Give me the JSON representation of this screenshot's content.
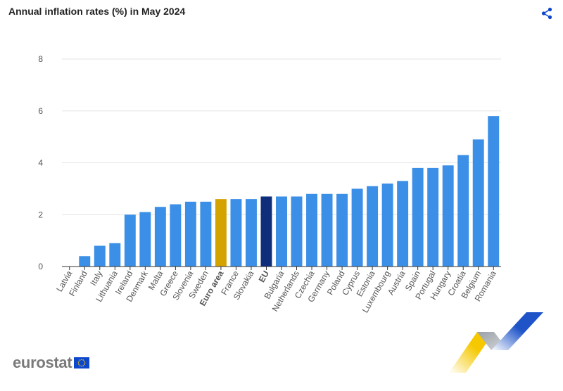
{
  "header": {
    "title": "Annual inflation rates (%) in May 2024"
  },
  "share": {
    "icon": "share-icon"
  },
  "brand": {
    "name": "eurostat"
  },
  "colors": {
    "country": "#3b8fe6",
    "euro_area": "#d4a300",
    "eu": "#0e2d7a",
    "grid": "#e3e3e3",
    "axis": "#333333",
    "text": "#555555",
    "brand": "#0e47cb",
    "flag": "#0e47cb",
    "flag_stars": "#ffdd00"
  },
  "chart_data": {
    "type": "bar",
    "title": "Annual inflation rates (%) in May 2024",
    "xlabel": "",
    "ylabel": "",
    "ylim": [
      0,
      8
    ],
    "yticks": [
      0,
      2,
      4,
      6,
      8
    ],
    "grid": true,
    "legend": "none",
    "categories": [
      "Latvia",
      "Finland",
      "Italy",
      "Lithuania",
      "Ireland",
      "Denmark",
      "Malta",
      "Greece",
      "Slovenia",
      "Sweden",
      "Euro area",
      "France",
      "Slovakia",
      "EU",
      "Bulgaria",
      "Netherlands",
      "Czechia",
      "Germany",
      "Poland",
      "Cyprus",
      "Estonia",
      "Luxembourg",
      "Austria",
      "Spain",
      "Portugal",
      "Hungary",
      "Croatia",
      "Belgium",
      "Romania"
    ],
    "values": [
      0.0,
      0.4,
      0.8,
      0.9,
      2.0,
      2.1,
      2.3,
      2.4,
      2.5,
      2.5,
      2.6,
      2.6,
      2.6,
      2.7,
      2.7,
      2.7,
      2.8,
      2.8,
      2.8,
      3.0,
      3.1,
      3.2,
      3.3,
      3.8,
      3.8,
      3.9,
      4.3,
      4.9,
      5.8
    ],
    "highlight": {
      "Euro area": "euro_area",
      "EU": "eu"
    }
  }
}
